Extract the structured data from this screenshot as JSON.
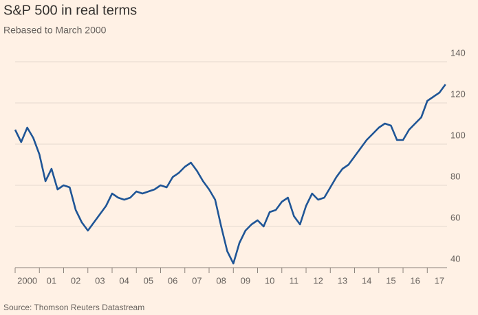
{
  "chart_data": {
    "type": "line",
    "title": "S&P 500 in real terms",
    "subtitle": "Rebased to March 2000",
    "source": "Source: Thomson Reuters Datastream",
    "categories": [
      "2000",
      null,
      null,
      null,
      "01",
      null,
      null,
      null,
      "02",
      null,
      null,
      null,
      "03",
      null,
      null,
      null,
      "04",
      null,
      null,
      null,
      "05",
      null,
      null,
      null,
      "06",
      null,
      null,
      null,
      "07",
      null,
      null,
      null,
      "08",
      null,
      null,
      null,
      "09",
      null,
      null,
      null,
      "10",
      null,
      null,
      null,
      "11",
      null,
      null,
      null,
      "12",
      null,
      null,
      null,
      "13",
      null,
      null,
      null,
      "14",
      null,
      null,
      null,
      "15",
      null,
      null,
      null,
      "16",
      null,
      null,
      null,
      "17",
      null,
      null,
      null
    ],
    "series": [
      {
        "name": "S&P 500",
        "color": "#1f5596",
        "values": [
          107,
          101,
          108,
          103,
          95,
          82,
          88,
          78,
          80,
          79,
          68,
          62,
          58,
          62,
          66,
          70,
          76,
          74,
          73,
          74,
          77,
          76,
          77,
          78,
          80,
          79,
          84,
          86,
          89,
          91,
          87,
          82,
          78,
          73,
          60,
          48,
          42,
          52,
          58,
          61,
          63,
          60,
          67,
          68,
          72,
          74,
          65,
          61,
          70,
          76,
          73,
          74,
          79,
          84,
          88,
          90,
          94,
          98,
          102,
          105,
          108,
          110,
          109,
          102,
          102,
          107,
          110,
          113,
          121,
          123,
          125,
          129
        ]
      }
    ],
    "ylim": [
      40,
      140
    ],
    "yticks": [
      40,
      60,
      80,
      100,
      120,
      140
    ],
    "grid": true
  }
}
